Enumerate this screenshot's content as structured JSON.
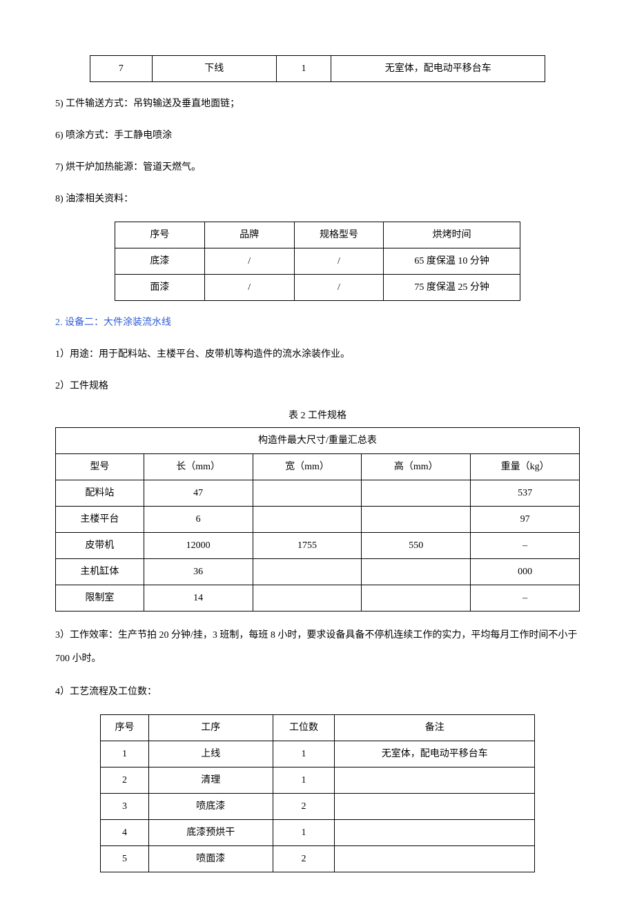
{
  "table1": {
    "rows": [
      {
        "no": "7",
        "proc": "下线",
        "count": "1",
        "note": "无室体，配电动平移台车"
      }
    ]
  },
  "lines": {
    "l5": "5) 工件输送方式：吊钩输送及垂直地面链；",
    "l6": "6) 喷涂方式：手工静电喷涂",
    "l7": "7) 烘干炉加热能源：管道天燃气。",
    "l8": "8) 油漆相关资料："
  },
  "table2": {
    "headers": {
      "c1": "序号",
      "c2": "品牌",
      "c3": "规格型号",
      "c4": "烘烤时间"
    },
    "rows": [
      {
        "c1": "底漆",
        "c2": "/",
        "c3": "/",
        "c4": "65 度保温 10 分钟"
      },
      {
        "c1": "面漆",
        "c2": "/",
        "c3": "/",
        "c4": "75 度保温 25 分钟"
      }
    ]
  },
  "section2": {
    "title": "2. 设备二：大件涂装流水线",
    "p1": "1）用途：用于配料站、主楼平台、皮带机等构造件的流水涂装作业。",
    "p2": "2）工件规格",
    "caption": "表 2   工件规格"
  },
  "table3": {
    "title": "构造件最大尺寸/重量汇总表",
    "headers": {
      "c1": "型号",
      "c2": "长（mm）",
      "c3": "宽（mm）",
      "c4": "高（mm）",
      "c5": "重量（kg）"
    },
    "rows": [
      {
        "c1": "配料站",
        "c2": "47",
        "c3": "",
        "c4": "",
        "c5": "537"
      },
      {
        "c1": "主楼平台",
        "c2": "6",
        "c3": "",
        "c4": "",
        "c5": "97"
      },
      {
        "c1": "皮带机",
        "c2": "12000",
        "c3": "1755",
        "c4": "550",
        "c5": "–"
      },
      {
        "c1": "主机缸体",
        "c2": "36",
        "c3": "",
        "c4": "",
        "c5": "000"
      },
      {
        "c1": "限制室",
        "c2": "14",
        "c3": "",
        "c4": "",
        "c5": "–"
      }
    ]
  },
  "section2b": {
    "p3": "3）工作效率：生产节拍 20 分钟/挂，3 班制，每班 8 小时，要求设备具备不停机连续工作的实力，平均每月工作时间不小于 700 小时。",
    "p4": "4）工艺流程及工位数："
  },
  "table4": {
    "headers": {
      "c1": "序号",
      "c2": "工序",
      "c3": "工位数",
      "c4": "备注"
    },
    "rows": [
      {
        "c1": "1",
        "c2": "上线",
        "c3": "1",
        "c4": "无室体，配电动平移台车"
      },
      {
        "c1": "2",
        "c2": "清理",
        "c3": "1",
        "c4": ""
      },
      {
        "c1": "3",
        "c2": "喷底漆",
        "c3": "2",
        "c4": ""
      },
      {
        "c1": "4",
        "c2": "底漆预烘干",
        "c3": "1",
        "c4": ""
      },
      {
        "c1": "5",
        "c2": "喷面漆",
        "c3": "2",
        "c4": ""
      }
    ]
  }
}
